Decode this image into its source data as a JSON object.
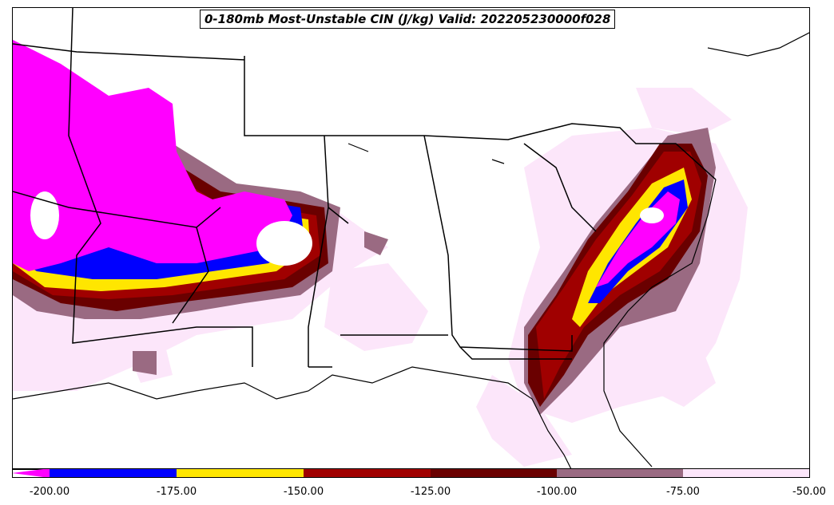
{
  "title": "0-180mb Most-Unstable CIN (J/kg) Valid: 202205230000f028",
  "colorbar": {
    "ticks": [
      "-200.00",
      "-175.00",
      "-150.00",
      "-125.00",
      "-100.00",
      "-75.00",
      "-50.00"
    ],
    "bins": [
      {
        "from": -200,
        "to": -175,
        "color": "#0000ff"
      },
      {
        "from": -175,
        "to": -150,
        "color": "#ffe600"
      },
      {
        "from": -150,
        "to": -125,
        "color": "#a00000"
      },
      {
        "from": -125,
        "to": -100,
        "color": "#6a0000"
      },
      {
        "from": -100,
        "to": -75,
        "color": "#9a6a82"
      },
      {
        "from": -75,
        "to": -50,
        "color": "#fce6fa"
      }
    ],
    "below_min_color": "#ff00ff",
    "outline_color": "#000000"
  },
  "map": {
    "region": "Southeastern United States",
    "boundaries": "state borders and coastlines",
    "boundary_color": "#000000"
  }
}
